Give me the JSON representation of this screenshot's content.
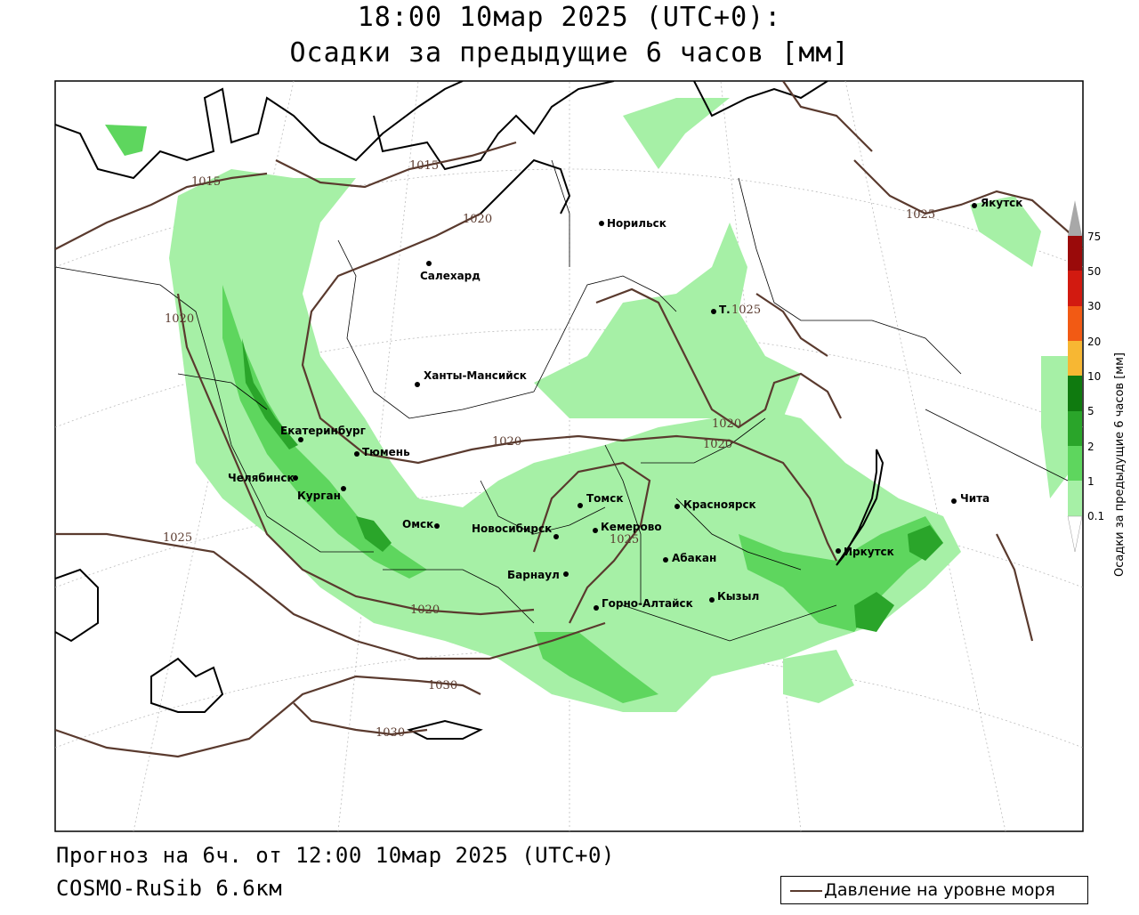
{
  "title_line1": "18:00 10мар 2025 (UTC+0):",
  "title_line2": "Осадки за предыдущие 6 часов [мм]",
  "footer_line1": "Прогноз на 6ч. от 12:00 10мар 2025 (UTC+0)",
  "footer_line2": "COSMO-RuSib 6.6км",
  "legend_label": "Давление на уровне моря",
  "colorbar": {
    "title": "Осадки за предыдущие 6 часов [мм]",
    "levels": [
      "0.1",
      "1",
      "2",
      "5",
      "10",
      "20",
      "30",
      "50",
      "75"
    ],
    "colors": [
      "#a6f0a6",
      "#5ed65e",
      "#2aa52a",
      "#0f7a0f",
      "#f7b733",
      "#f78a1a",
      "#f25a14",
      "#d21a10",
      "#9a0a0a",
      "#a8a8a8"
    ]
  },
  "cities": [
    {
      "name": "Норильск"
    },
    {
      "name": "Салехард"
    },
    {
      "name": "Ханты-Мансийск"
    },
    {
      "name": "Екатеринбург"
    },
    {
      "name": "Тюмень"
    },
    {
      "name": "Челябинск"
    },
    {
      "name": "Курган"
    },
    {
      "name": "Омск"
    },
    {
      "name": "Новосибирск"
    },
    {
      "name": "Томск"
    },
    {
      "name": "Кемерово"
    },
    {
      "name": "Красноярск"
    },
    {
      "name": "Барнаул"
    },
    {
      "name": "Абакан"
    },
    {
      "name": "Горно-Алтайск"
    },
    {
      "name": "Кызыл"
    },
    {
      "name": "Иркутск"
    },
    {
      "name": "Чита"
    },
    {
      "name": "Якутск"
    },
    {
      "name": "Т."
    }
  ],
  "isobars": [
    "1015",
    "1015",
    "1020",
    "1020",
    "1020",
    "1020",
    "1020",
    "1020",
    "1025",
    "1025",
    "1025",
    "1025",
    "1030",
    "1030"
  ],
  "colors": {
    "coast": "#000000",
    "border": "#000000",
    "isobar": "#5a3a2e",
    "precip_light": "#a6f0a6",
    "precip_mid": "#5ed65e",
    "precip_dark": "#2aa52a"
  }
}
